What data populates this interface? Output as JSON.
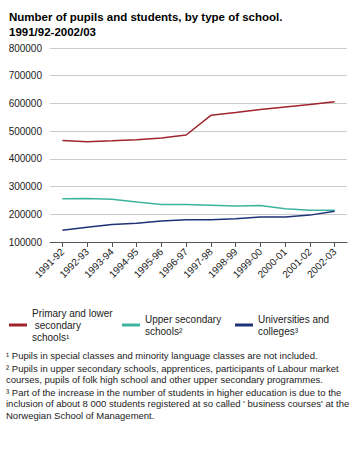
{
  "chart_data": {
    "type": "line",
    "title": "Number of pupils and students, by type of school.\n1991/92-2002/03",
    "categories": [
      "1991-92",
      "1992-93",
      "1993-94",
      "1994-95",
      "1995-96",
      "1996-97",
      "1997-98",
      "1998-99",
      "1999-00",
      "2000-01",
      "2001-02",
      "2002-03"
    ],
    "series": [
      {
        "name": "Primary and lower secondary schools¹",
        "color": "#a0242c",
        "values": [
          466000,
          462000,
          465000,
          469000,
          475000,
          486000,
          557000,
          567000,
          578000,
          587000,
          596000,
          606000
        ]
      },
      {
        "name": "Upper secondary schools²",
        "color": "#3cb4a0",
        "values": [
          256000,
          257000,
          254000,
          244000,
          235000,
          235000,
          233000,
          230000,
          232000,
          220000,
          215000,
          215000
        ]
      },
      {
        "name": "Universities and colleges³",
        "color": "#1e3278",
        "values": [
          142000,
          153000,
          163000,
          168000,
          176000,
          180000,
          180000,
          184000,
          190000,
          190000,
          197000,
          211000
        ]
      }
    ],
    "ylim": [
      100000,
      800000
    ],
    "yticks": [
      100000,
      200000,
      300000,
      400000,
      500000,
      600000,
      700000,
      800000
    ],
    "grid": true,
    "legend": "bottom",
    "annotations": [
      "¹ Pupils in special classes and minority language classes are not included.",
      "² Pupils in upper secondary schools, apprentices, participants of Labour market courses, pupils of folk high school and other upper secondary programmes.",
      "³ Part of the increase in the number of students in higher education is due to the inclusion of about 8 000 students registered at so called ' business courses' at the Norwegian School of Management."
    ]
  }
}
